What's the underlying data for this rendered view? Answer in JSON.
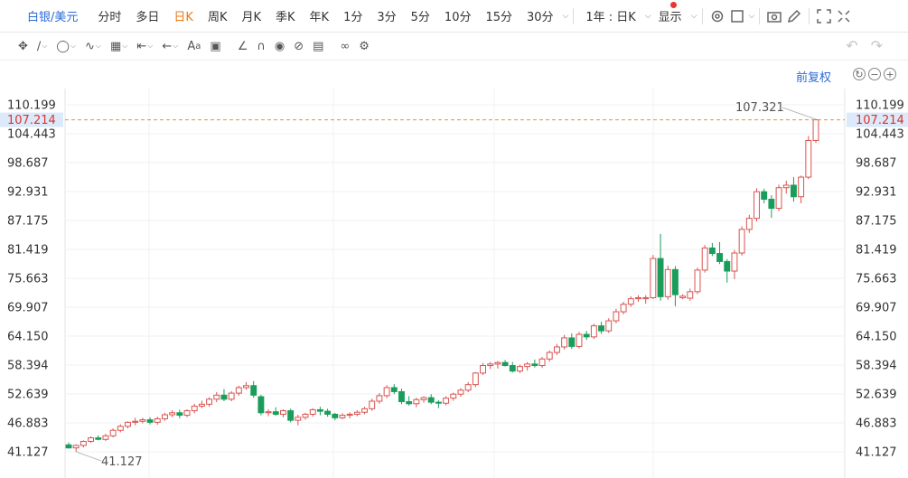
{
  "topbar": {
    "symbol": "白银/美元",
    "periods": [
      "分时",
      "多日",
      "日K",
      "周K",
      "月K",
      "季K",
      "年K",
      "1分",
      "3分",
      "5分",
      "10分",
      "15分",
      "30分"
    ],
    "active_period": "日K",
    "range": "1年 : 日K",
    "display": "显示"
  },
  "toolbar": {
    "icons": [
      "move-icon",
      "line-icon",
      "polyline-icon",
      "wave-icon",
      "fib-icon",
      "measure-icon",
      "arrow-icon",
      "text-icon",
      "comment-icon",
      "pen-icon",
      "magnet-icon",
      "eye-icon",
      "hide-icon",
      "trash-icon",
      "link-icon",
      "settings-icon"
    ]
  },
  "chart_header": {
    "adjust_label": "前复权"
  },
  "chart_data": {
    "type": "candlestick",
    "y_ticks": [
      "110.199",
      "104.443",
      "98.687",
      "92.931",
      "87.175",
      "81.419",
      "75.663",
      "69.907",
      "64.150",
      "58.394",
      "52.639",
      "46.883",
      "41.127"
    ],
    "y_tick_values": [
      110.199,
      104.443,
      98.687,
      92.931,
      87.175,
      81.419,
      75.663,
      69.907,
      64.15,
      58.394,
      52.639,
      46.883,
      41.127
    ],
    "ylim": [
      39.5,
      112.5
    ],
    "current_price": "107.214",
    "current_price_value": 107.214,
    "max_label": "107.321",
    "max_value": 107.321,
    "min_label": "41.127",
    "min_value": 41.127,
    "colors": {
      "up": "#d9534f",
      "down": "#1a9d5a",
      "current_line": "#e8922e",
      "current_label_bg": "#dbe9fb",
      "current_label_text": "#d9352b"
    },
    "candles": [
      [
        42.5,
        43.0,
        41.8,
        41.9
      ],
      [
        41.9,
        42.6,
        41.127,
        42.4
      ],
      [
        42.4,
        43.4,
        42.0,
        43.2
      ],
      [
        43.2,
        44.2,
        42.9,
        43.9
      ],
      [
        43.9,
        44.4,
        43.4,
        43.6
      ],
      [
        43.6,
        44.7,
        43.3,
        44.3
      ],
      [
        44.3,
        45.8,
        44.0,
        45.4
      ],
      [
        45.4,
        46.6,
        45.0,
        46.2
      ],
      [
        46.2,
        47.2,
        45.8,
        47.0
      ],
      [
        47.0,
        47.9,
        46.4,
        47.2
      ],
      [
        47.2,
        47.9,
        46.8,
        47.5
      ],
      [
        47.5,
        48.0,
        46.6,
        47.0
      ],
      [
        47.0,
        48.1,
        46.5,
        47.7
      ],
      [
        47.7,
        48.9,
        47.3,
        48.5
      ],
      [
        48.5,
        49.4,
        48.0,
        48.9
      ],
      [
        48.9,
        49.5,
        47.8,
        48.4
      ],
      [
        48.4,
        49.6,
        48.0,
        49.3
      ],
      [
        49.3,
        50.7,
        48.8,
        50.2
      ],
      [
        50.2,
        51.3,
        49.8,
        50.6
      ],
      [
        50.6,
        52.0,
        50.1,
        51.6
      ],
      [
        51.6,
        53.0,
        51.0,
        52.4
      ],
      [
        52.4,
        53.6,
        51.2,
        51.6
      ],
      [
        51.6,
        53.2,
        51.2,
        52.8
      ],
      [
        52.8,
        54.3,
        52.3,
        53.9
      ],
      [
        53.9,
        55.0,
        53.5,
        54.3
      ],
      [
        54.3,
        55.2,
        51.9,
        52.4
      ],
      [
        52.1,
        52.5,
        48.4,
        48.9
      ],
      [
        48.9,
        49.6,
        48.2,
        49.1
      ],
      [
        49.1,
        50.0,
        48.3,
        48.6
      ],
      [
        48.6,
        49.6,
        48.0,
        49.3
      ],
      [
        49.3,
        49.7,
        47.0,
        47.4
      ],
      [
        47.4,
        48.5,
        46.4,
        48.0
      ],
      [
        48.0,
        48.9,
        47.5,
        48.6
      ],
      [
        48.6,
        49.8,
        48.1,
        49.5
      ],
      [
        49.5,
        50.1,
        48.4,
        49.2
      ],
      [
        49.2,
        49.7,
        48.1,
        48.6
      ],
      [
        48.6,
        48.9,
        47.4,
        47.9
      ],
      [
        47.9,
        48.8,
        47.6,
        48.4
      ],
      [
        48.4,
        49.0,
        47.8,
        48.6
      ],
      [
        48.6,
        49.4,
        48.2,
        49.0
      ],
      [
        49.0,
        50.1,
        48.6,
        49.7
      ],
      [
        49.7,
        51.7,
        49.3,
        51.2
      ],
      [
        51.2,
        52.8,
        50.7,
        52.3
      ],
      [
        52.3,
        54.4,
        51.8,
        53.9
      ],
      [
        53.9,
        54.6,
        52.6,
        53.1
      ],
      [
        53.1,
        53.7,
        50.6,
        51.1
      ],
      [
        51.1,
        52.2,
        50.3,
        50.7
      ],
      [
        50.7,
        51.9,
        50.0,
        51.5
      ],
      [
        51.5,
        52.2,
        50.9,
        51.9
      ],
      [
        51.9,
        52.6,
        50.6,
        51.0
      ],
      [
        51.0,
        51.4,
        49.8,
        50.8
      ],
      [
        50.8,
        52.2,
        50.4,
        51.8
      ],
      [
        51.8,
        52.9,
        51.3,
        52.6
      ],
      [
        52.6,
        53.8,
        52.1,
        53.4
      ],
      [
        53.4,
        55.0,
        53.0,
        54.5
      ],
      [
        54.5,
        57.0,
        54.0,
        56.8
      ],
      [
        56.8,
        58.8,
        56.4,
        58.3
      ],
      [
        58.3,
        59.0,
        57.6,
        58.6
      ],
      [
        58.6,
        59.2,
        57.7,
        58.9
      ],
      [
        58.9,
        59.4,
        58.1,
        58.3
      ],
      [
        58.3,
        59.0,
        56.9,
        57.2
      ],
      [
        57.2,
        58.5,
        56.8,
        58.1
      ],
      [
        58.1,
        59.0,
        57.3,
        58.6
      ],
      [
        58.6,
        59.5,
        57.9,
        58.3
      ],
      [
        58.3,
        60.0,
        57.8,
        59.6
      ],
      [
        59.6,
        61.3,
        59.1,
        60.9
      ],
      [
        60.9,
        62.6,
        60.4,
        62.0
      ],
      [
        62.0,
        64.4,
        61.5,
        63.8
      ],
      [
        63.8,
        64.7,
        61.6,
        62.1
      ],
      [
        62.1,
        65.0,
        61.7,
        64.5
      ],
      [
        64.5,
        65.2,
        63.4,
        64.0
      ],
      [
        64.0,
        66.6,
        63.6,
        66.2
      ],
      [
        66.2,
        67.0,
        64.6,
        65.2
      ],
      [
        65.2,
        67.7,
        64.8,
        67.2
      ],
      [
        67.2,
        69.6,
        66.7,
        69.0
      ],
      [
        69.0,
        71.0,
        68.5,
        70.5
      ],
      [
        70.5,
        72.1,
        70.0,
        71.6
      ],
      [
        71.6,
        72.3,
        71.0,
        71.8
      ],
      [
        71.6,
        72.3,
        70.6,
        71.8
      ],
      [
        71.8,
        80.3,
        71.5,
        79.6
      ],
      [
        79.6,
        84.5,
        71.2,
        72.0
      ],
      [
        72.0,
        78.2,
        71.4,
        77.4
      ],
      [
        77.4,
        78.1,
        70.1,
        72.4
      ],
      [
        71.8,
        72.5,
        71.5,
        72.1
      ],
      [
        71.7,
        73.6,
        71.2,
        73.0
      ],
      [
        73.0,
        77.8,
        72.5,
        77.3
      ],
      [
        77.3,
        82.3,
        76.8,
        81.7
      ],
      [
        81.7,
        82.7,
        80.1,
        80.6
      ],
      [
        80.6,
        82.9,
        78.5,
        79.0
      ],
      [
        79.0,
        79.5,
        74.8,
        77.1
      ],
      [
        77.1,
        81.3,
        75.5,
        80.7
      ],
      [
        80.7,
        86.0,
        80.2,
        85.4
      ],
      [
        85.4,
        88.3,
        84.7,
        87.6
      ],
      [
        87.6,
        93.6,
        87.0,
        92.9
      ],
      [
        92.9,
        93.5,
        90.6,
        91.4
      ],
      [
        91.4,
        92.2,
        87.7,
        89.6
      ],
      [
        89.6,
        94.3,
        89.0,
        93.7
      ],
      [
        93.7,
        95.1,
        92.5,
        94.2
      ],
      [
        94.2,
        95.8,
        90.9,
        91.9
      ],
      [
        91.9,
        96.1,
        90.6,
        95.8
      ],
      [
        95.8,
        104.0,
        95.4,
        103.1
      ],
      [
        103.1,
        107.321,
        102.6,
        107.214
      ]
    ]
  }
}
